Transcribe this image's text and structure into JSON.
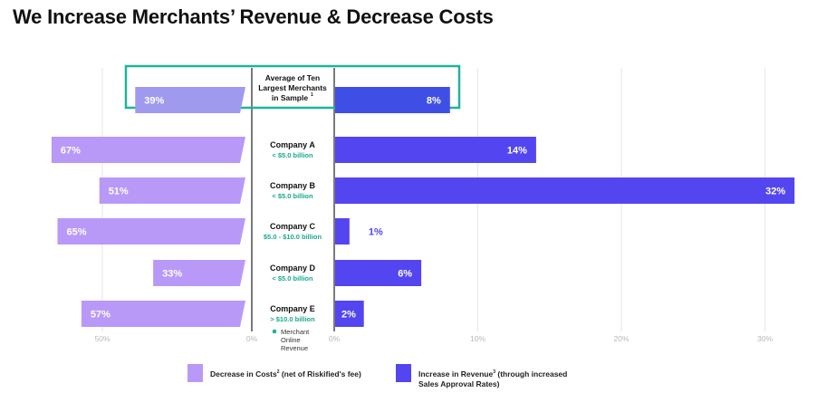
{
  "title": "We Increase Merchants’ Revenue & Decrease Costs",
  "colors": {
    "cost": "#b899f8",
    "cost_avg": "#9f9aee",
    "revenue": "#5346f0",
    "revenue_avg": "#3f4fe6",
    "highlight": "#20b39a",
    "range_text": "#1aa88d",
    "grid": "#e6e6e6",
    "tick": "#b8b8b8"
  },
  "chart_data": {
    "type": "bar",
    "orientation": "horizontal-diverging",
    "categories": [
      "Average of Ten Largest Merchants in Sample",
      "Company A",
      "Company B",
      "Company C",
      "Company D",
      "Company E"
    ],
    "category_details": [
      "",
      "< $5.0 billion",
      "< $5.0 billion",
      "$5.0 - $10.0 billion",
      "< $5.0 billion",
      "> $10.0 billion"
    ],
    "header": {
      "lines": [
        "Average of Ten",
        "Largest Merchants",
        "in Sample"
      ],
      "sup": "1"
    },
    "series": [
      {
        "name": "Decrease in Costs (net of Riskified's fee)",
        "side": "left",
        "values": [
          39,
          67,
          51,
          65,
          33,
          57
        ]
      },
      {
        "name": "Increase in Revenue (through increased Sales Approval Rates)",
        "side": "right",
        "values": [
          8,
          14,
          32,
          1,
          6,
          2
        ]
      }
    ],
    "value_labels": {
      "left": [
        "39%",
        "67%",
        "51%",
        "65%",
        "33%",
        "57%"
      ],
      "right": [
        "8%",
        "14%",
        "32%",
        "1%",
        "6%",
        "2%"
      ]
    },
    "left_axis": {
      "range": [
        50,
        0
      ],
      "ticks": [
        "50%",
        "0%"
      ]
    },
    "right_axis": {
      "range": [
        0,
        30
      ],
      "ticks": [
        "0%",
        "10%",
        "20%",
        "30%"
      ]
    },
    "center_label": "Merchant Online Revenue"
  },
  "legend": {
    "cost": {
      "text": "Decrease in Costs",
      "sup": "2",
      "suffix": " (net of Riskified's fee)"
    },
    "revenue": {
      "text": "Increase in Revenue",
      "sup": "3",
      "line1_suffix": " (through increased",
      "line2": "Sales Approval Rates)"
    }
  }
}
